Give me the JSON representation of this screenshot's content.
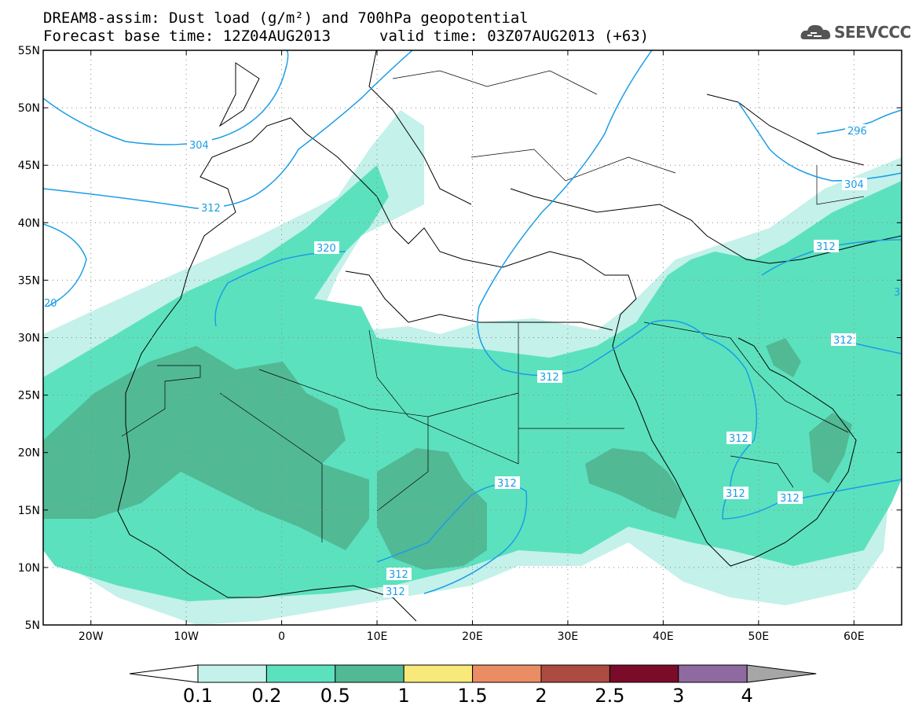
{
  "header": {
    "title_line1": "DREAM8-assim: Dust load (g/m²) and 700hPa geopotential",
    "title_line2_base": "Forecast base time: 12Z04AUG2013",
    "title_line2_valid": "valid time: 03Z07AUG2013 (+63)"
  },
  "logo": {
    "text": "SEEVCCC",
    "icon": "cloud-icon"
  },
  "axes": {
    "lat_labels": [
      "55N",
      "50N",
      "45N",
      "40N",
      "35N",
      "30N",
      "25N",
      "20N",
      "15N",
      "10N",
      "5N"
    ],
    "lon_labels": [
      "20W",
      "10W",
      "0",
      "10E",
      "20E",
      "30E",
      "40E",
      "50E",
      "60E"
    ]
  },
  "contours": {
    "color": "#1a9ee6",
    "labels": [
      "304",
      "312",
      "296",
      "304",
      "312",
      "320",
      "20",
      "312",
      "312",
      "312",
      "312",
      "312",
      "312",
      "312",
      "312",
      "312",
      "3"
    ]
  },
  "colorbar": {
    "levels": [
      "0.1",
      "0.2",
      "0.5",
      "1",
      "1.5",
      "2",
      "2.5",
      "3",
      "4"
    ],
    "colors": [
      "#ffffff",
      "#c4f1ea",
      "#5ce1be",
      "#52b995",
      "#f7e97a",
      "#ea8c64",
      "#ad4b42",
      "#7a0c2a",
      "#8e6aa0",
      "#a6a6a6"
    ]
  },
  "legend_colors": {
    "band_light": "#c4f1ea",
    "band_mid": "#5ce1be",
    "band_dark": "#52b995"
  }
}
